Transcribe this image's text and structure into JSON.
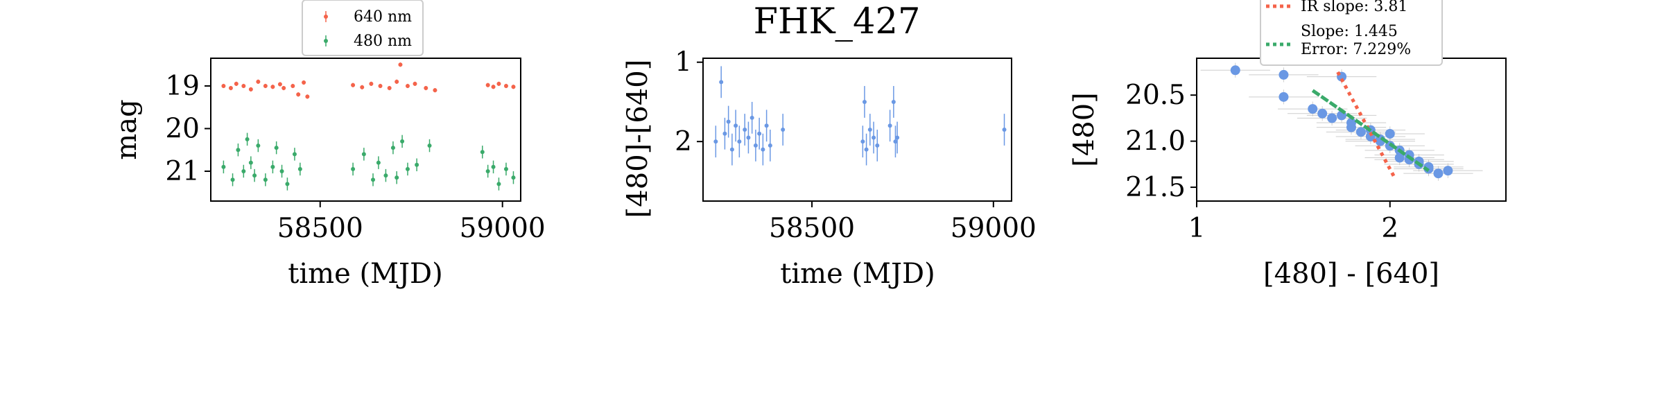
{
  "title": "FHK_427",
  "colors": {
    "red": "#f4634a",
    "green": "#3aaa6a",
    "blue": "#6a98e4",
    "gray": "#b8b8b8"
  },
  "chart_data": [
    {
      "type": "scatter",
      "xlabel": "time (MJD)",
      "ylabel": "mag",
      "xlim": [
        58200,
        59050
      ],
      "ylim": [
        21.7,
        18.35
      ],
      "xticks": [
        58500,
        59000
      ],
      "yticks": [
        19,
        20,
        21
      ],
      "legend": {
        "placement": "top (outside axes)",
        "entries": [
          "640 nm",
          "480 nm"
        ]
      },
      "series": [
        {
          "name": "640 nm",
          "color": "#f4634a",
          "yerr": 0.05,
          "x": [
            58235,
            58255,
            58270,
            58290,
            58310,
            58330,
            58350,
            58370,
            58390,
            58400,
            58425,
            58440,
            58455,
            58465,
            58590,
            58615,
            58640,
            58665,
            58690,
            58710,
            58720,
            58740,
            58760,
            58790,
            58815,
            58960,
            58975,
            58990,
            59010,
            59030
          ],
          "y": [
            19.0,
            19.05,
            18.95,
            19.0,
            19.08,
            18.9,
            19.0,
            19.02,
            18.96,
            19.05,
            19.0,
            19.2,
            18.92,
            19.25,
            18.98,
            19.03,
            18.95,
            19.0,
            19.05,
            18.9,
            18.5,
            19.0,
            18.95,
            19.05,
            19.1,
            18.98,
            19.02,
            18.95,
            19.0,
            19.02
          ]
        },
        {
          "name": "480 nm",
          "color": "#3aaa6a",
          "yerr": 0.15,
          "x": [
            58235,
            58260,
            58275,
            58290,
            58300,
            58310,
            58320,
            58330,
            58350,
            58370,
            58380,
            58395,
            58410,
            58430,
            58445,
            58590,
            58620,
            58645,
            58660,
            58680,
            58700,
            58710,
            58725,
            58740,
            58765,
            58800,
            58945,
            58960,
            58975,
            58990,
            59010,
            59030
          ],
          "y": [
            20.9,
            21.2,
            20.5,
            21.0,
            20.25,
            20.8,
            21.1,
            20.4,
            21.2,
            20.9,
            20.45,
            21.0,
            21.3,
            20.6,
            20.95,
            20.95,
            20.6,
            21.2,
            20.8,
            21.1,
            20.45,
            21.15,
            20.3,
            20.95,
            20.85,
            20.4,
            20.55,
            21.0,
            20.9,
            21.3,
            20.95,
            21.15
          ]
        }
      ]
    },
    {
      "type": "scatter",
      "xlabel": "time (MJD)",
      "ylabel": "[480]-[640]",
      "xlim": [
        58200,
        59050
      ],
      "ylim": [
        2.75,
        0.95
      ],
      "xticks": [
        58500,
        59000
      ],
      "yticks": [
        1,
        2
      ],
      "series": [
        {
          "color": "#6a98e4",
          "yerr": 0.2,
          "x": [
            58235,
            58250,
            58260,
            58270,
            58280,
            58290,
            58300,
            58315,
            58325,
            58335,
            58345,
            58355,
            58365,
            58375,
            58385,
            58420,
            58640,
            58645,
            58650,
            58660,
            58670,
            58680,
            58715,
            58725,
            58730,
            58735,
            59030
          ],
          "y": [
            2.0,
            1.25,
            1.9,
            1.75,
            2.1,
            1.8,
            2.0,
            1.85,
            1.95,
            1.7,
            2.05,
            1.9,
            2.1,
            1.8,
            2.05,
            1.85,
            2.0,
            1.5,
            2.1,
            1.85,
            1.95,
            2.05,
            1.8,
            1.5,
            2.0,
            1.95,
            1.85
          ]
        }
      ]
    },
    {
      "type": "scatter",
      "xlabel": "[480] - [640]",
      "ylabel": "[480]",
      "xlim": [
        1.0,
        2.6
      ],
      "ylim": [
        21.65,
        20.1
      ],
      "xticks": [
        1,
        2
      ],
      "yticks": [
        20.5,
        21.0,
        21.5
      ],
      "yticklabels": [
        "20.5",
        "21.0",
        "21.5"
      ],
      "legend": {
        "placement": "top (outside axes)",
        "entries": [
          "IR slope: 3.81",
          "Slope: 1.445\nError: 7.229%"
        ]
      },
      "points": {
        "color": "#6a98e4",
        "x": [
          1.2,
          1.45,
          1.45,
          1.65,
          1.75,
          1.7,
          1.8,
          1.85,
          1.9,
          1.95,
          2.0,
          2.05,
          2.1,
          2.15,
          2.2,
          2.25,
          2.3,
          1.6,
          1.8,
          2.0,
          2.1,
          2.2,
          1.9,
          2.05,
          2.15,
          1.75,
          1.95
        ],
        "y": [
          20.23,
          20.28,
          20.52,
          20.7,
          20.3,
          20.75,
          20.8,
          20.9,
          20.95,
          21.0,
          21.05,
          21.1,
          21.2,
          21.25,
          21.3,
          21.35,
          21.32,
          20.65,
          20.85,
          20.92,
          21.15,
          21.28,
          20.88,
          21.18,
          21.22,
          20.72,
          20.98
        ]
      },
      "lines": [
        {
          "label": "IR slope: 3.81",
          "color": "#f4634a",
          "style": "dotted",
          "x": [
            1.73,
            2.02
          ],
          "y": [
            20.25,
            21.38
          ]
        },
        {
          "label": "Slope: 1.445",
          "color": "#3aaa6a",
          "style": "dotted",
          "x": [
            1.6,
            2.2
          ],
          "y": [
            20.45,
            21.32
          ]
        }
      ]
    }
  ]
}
